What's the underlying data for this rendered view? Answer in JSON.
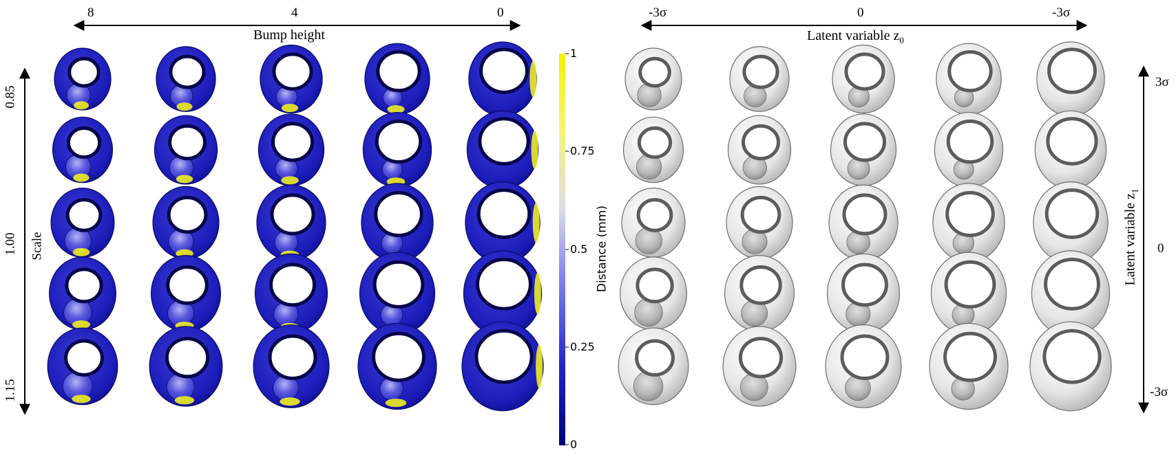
{
  "left_panel": {
    "top_axis": {
      "label": "Bump height",
      "ticks": [
        "8",
        "4",
        "0"
      ]
    },
    "side_axis": {
      "label": "Scale",
      "ticks": [
        "0.85",
        "1.00",
        "1.15"
      ]
    },
    "grid": {
      "rows": 5,
      "cols": 5
    }
  },
  "colorbar": {
    "label": "Distance (mm)",
    "ticks": [
      "1",
      "0.75",
      "0.5",
      "0.25",
      "0"
    ],
    "gradient": [
      "#00007a",
      "#2222cc",
      "#8c8cf0",
      "#dcdce6",
      "#f4f47a",
      "#f2f200"
    ]
  },
  "right_panel": {
    "top_axis": {
      "label": "Latent variable z",
      "subscript": "0",
      "ticks": [
        "-3σ",
        "0",
        "-3σ"
      ]
    },
    "side_axis": {
      "label": "Latent variable z",
      "subscript": "1",
      "ticks": [
        "3σ",
        "0",
        "-3σ"
      ]
    },
    "grid": {
      "rows": 5,
      "cols": 5
    }
  }
}
